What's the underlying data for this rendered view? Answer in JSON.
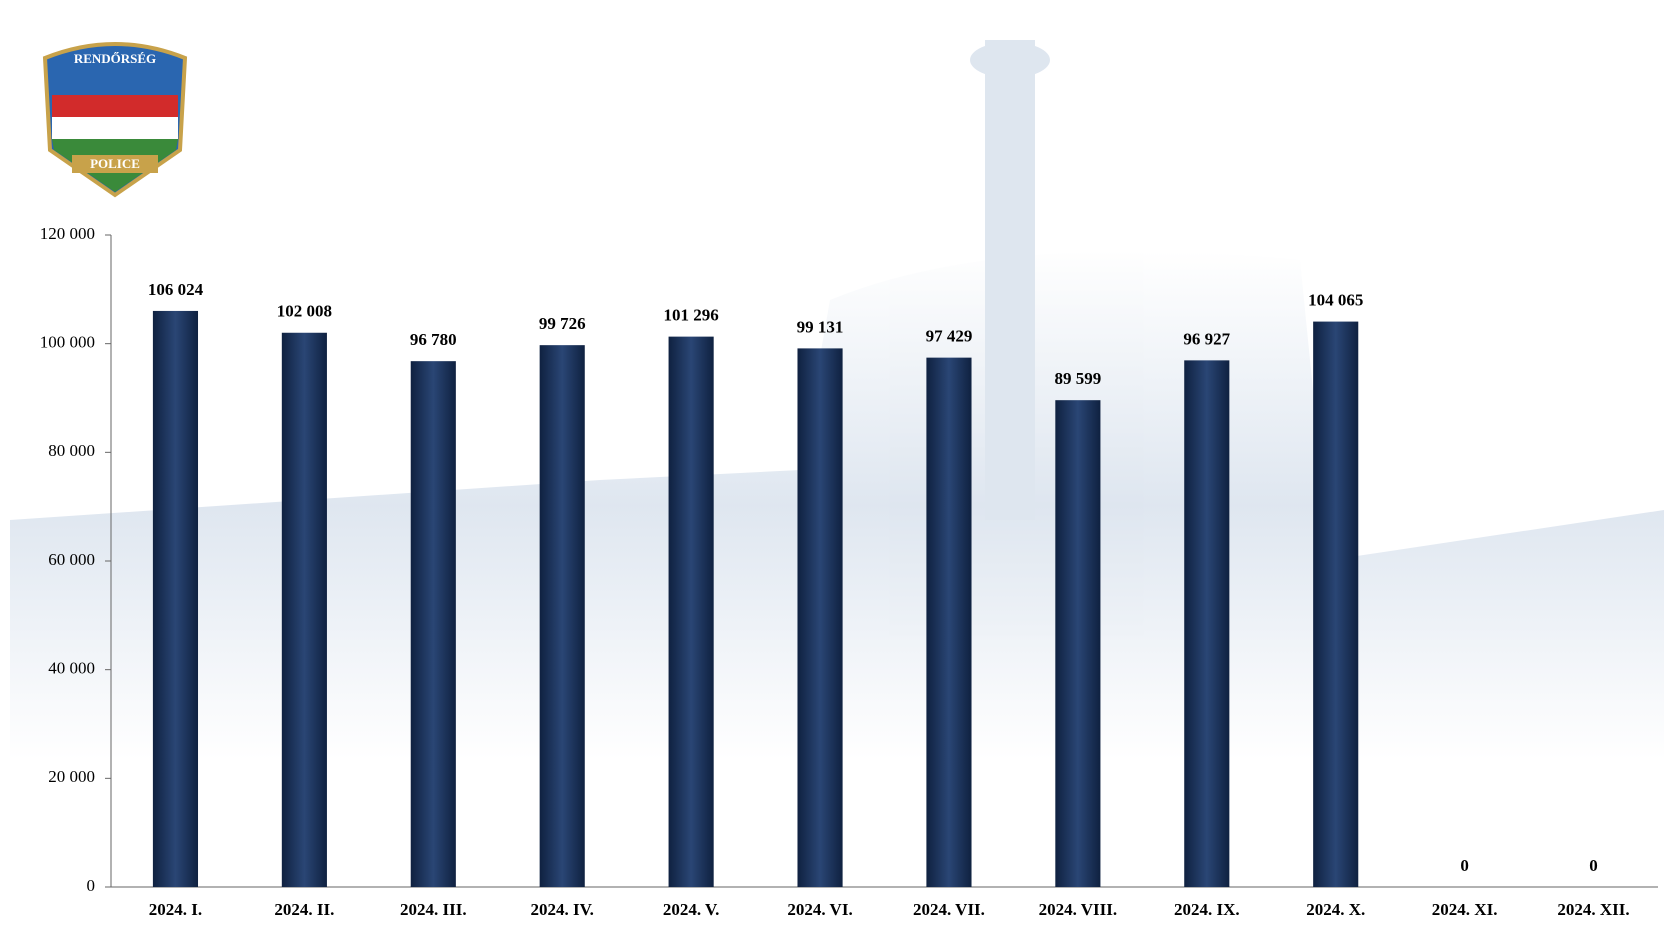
{
  "logo": {
    "top_text": "RENDŐRSÉG",
    "bottom_text": "POLICE"
  },
  "chart_data": {
    "type": "bar",
    "categories": [
      "2024. I.",
      "2024. II.",
      "2024. III.",
      "2024. IV.",
      "2024. V.",
      "2024. VI.",
      "2024. VII.",
      "2024. VIII.",
      "2024. IX.",
      "2024. X.",
      "2024. XI.",
      "2024. XII."
    ],
    "values": [
      106024,
      102008,
      96780,
      99726,
      101296,
      99131,
      97429,
      89599,
      96927,
      104065,
      0,
      0
    ],
    "value_labels": [
      "106 024",
      "102 008",
      "96 780",
      "99 726",
      "101 296",
      "99 131",
      "97 429",
      "89 599",
      "96 927",
      "104 065",
      "0",
      "0"
    ],
    "color": "#1f3864",
    "ylim": [
      0,
      120000
    ],
    "yticks": [
      0,
      {
        "value": 20000,
        "label": "20 000"
      },
      {
        "value": 40000,
        "label": "40 000"
      },
      {
        "value": 60000,
        "label": "60 000"
      },
      {
        "value": 80000,
        "label": "80 000"
      },
      {
        "value": 100000,
        "label": "100 000"
      },
      {
        "value": 120000,
        "label": "120 000"
      }
    ],
    "grid": false
  }
}
